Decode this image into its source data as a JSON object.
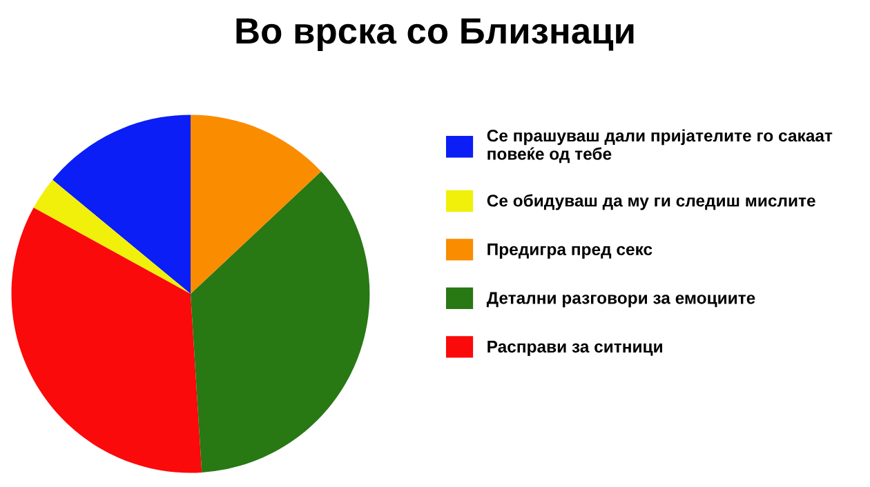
{
  "chart_data": {
    "type": "pie",
    "title": "Во врска со Близнаци",
    "categories": [
      "Се прашуваш дали пријателите го сакаат\nповеќе од тебе",
      "Се обидуваш да му ги следиш мислите",
      "Предигра пред секс",
      "Детални разговори за емоциите",
      "Расправи за ситници"
    ],
    "values": [
      14,
      3,
      13,
      36,
      34
    ],
    "colors": [
      "#0a1ef5",
      "#f0f00a",
      "#fa8c00",
      "#287814",
      "#fa0a0a"
    ],
    "legend": "right"
  }
}
